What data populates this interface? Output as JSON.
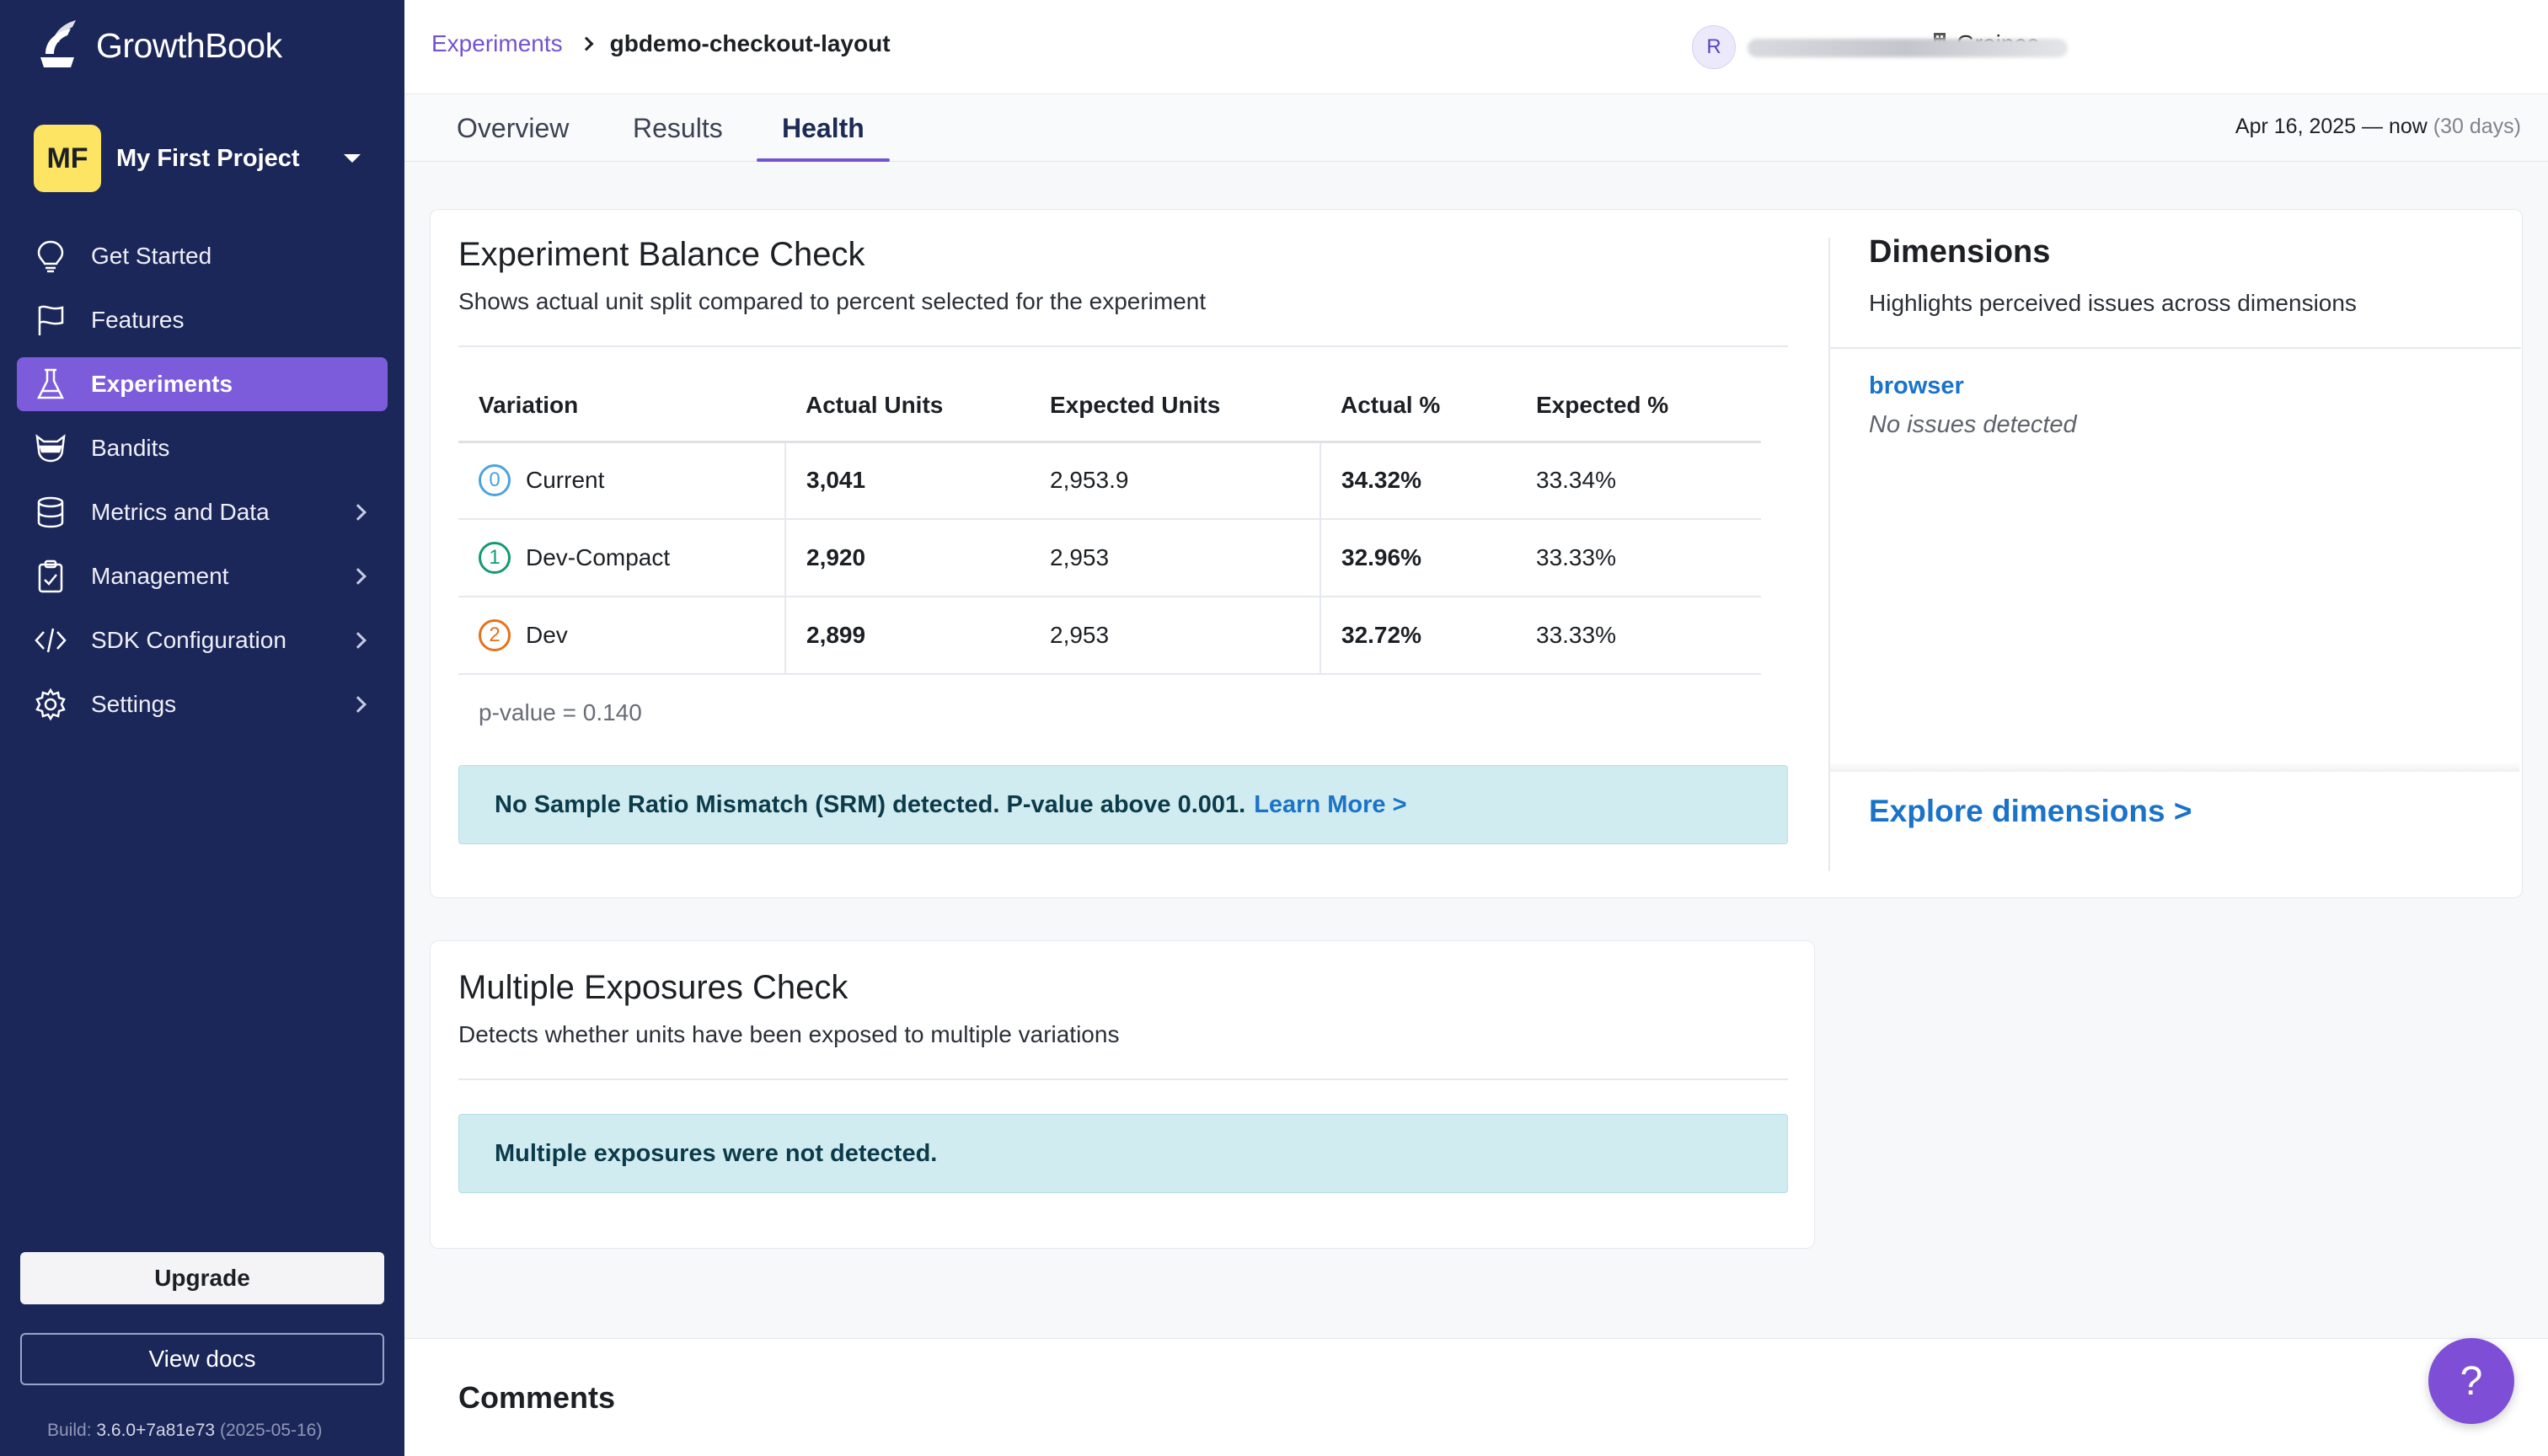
{
  "app": {
    "name": "GrowthBook"
  },
  "project": {
    "initials": "MF",
    "name": "My First Project"
  },
  "nav": [
    {
      "label": "Get Started",
      "icon": "lightbulb-icon"
    },
    {
      "label": "Features",
      "icon": "flag-icon"
    },
    {
      "label": "Experiments",
      "icon": "flask-icon",
      "active": true
    },
    {
      "label": "Bandits",
      "icon": "bandit-icon"
    },
    {
      "label": "Metrics and Data",
      "icon": "database-icon"
    },
    {
      "label": "Management",
      "icon": "clipboard-icon"
    },
    {
      "label": "SDK Configuration",
      "icon": "code-icon"
    },
    {
      "label": "Settings",
      "icon": "gear-icon"
    }
  ],
  "sidebar_footer": {
    "upgrade": "Upgrade",
    "docs": "View docs",
    "build_label": "Build:",
    "build_version": "3.6.0+7a81e73",
    "build_date": "(2025-05-16)"
  },
  "header": {
    "breadcrumb_parent": "Experiments",
    "breadcrumb_current": "gbdemo-checkout-layout",
    "org": "Graines",
    "avatar_initial": "R"
  },
  "tabs": {
    "overview": "Overview",
    "results": "Results",
    "health": "Health"
  },
  "date_range": {
    "text": "Apr 16, 2025 — now",
    "days": "(30 days)"
  },
  "balance": {
    "title": "Experiment Balance Check",
    "subtitle": "Shows actual unit split compared to percent selected for the experiment",
    "columns": [
      "Variation",
      "Actual Units",
      "Expected Units",
      "Actual %",
      "Expected %"
    ],
    "rows": [
      {
        "idx": "0",
        "name": "Current",
        "actual": "3,041",
        "expected": "2,953.9",
        "actual_pct": "34.32%",
        "expected_pct": "33.34%",
        "color": "#4aa3df"
      },
      {
        "idx": "1",
        "name": "Dev-Compact",
        "actual": "2,920",
        "expected": "2,953",
        "actual_pct": "32.96%",
        "expected_pct": "33.33%",
        "color": "#129a74"
      },
      {
        "idx": "2",
        "name": "Dev",
        "actual": "2,899",
        "expected": "2,953",
        "actual_pct": "32.72%",
        "expected_pct": "33.33%",
        "color": "#e5711c"
      }
    ],
    "pvalue": "p-value = 0.140",
    "alert": "No Sample Ratio Mismatch (SRM) detected. P-value above 0.001.",
    "alert_link": "Learn More >"
  },
  "dimensions": {
    "title": "Dimensions",
    "subtitle": "Highlights perceived issues across dimensions",
    "item": "browser",
    "item_status": "No issues detected",
    "explore": "Explore dimensions >"
  },
  "exposures": {
    "title": "Multiple Exposures Check",
    "subtitle": "Detects whether units have been exposed to multiple variations",
    "alert": "Multiple exposures were not detected."
  },
  "comments": {
    "title": "Comments"
  },
  "help": {
    "label": "?"
  }
}
